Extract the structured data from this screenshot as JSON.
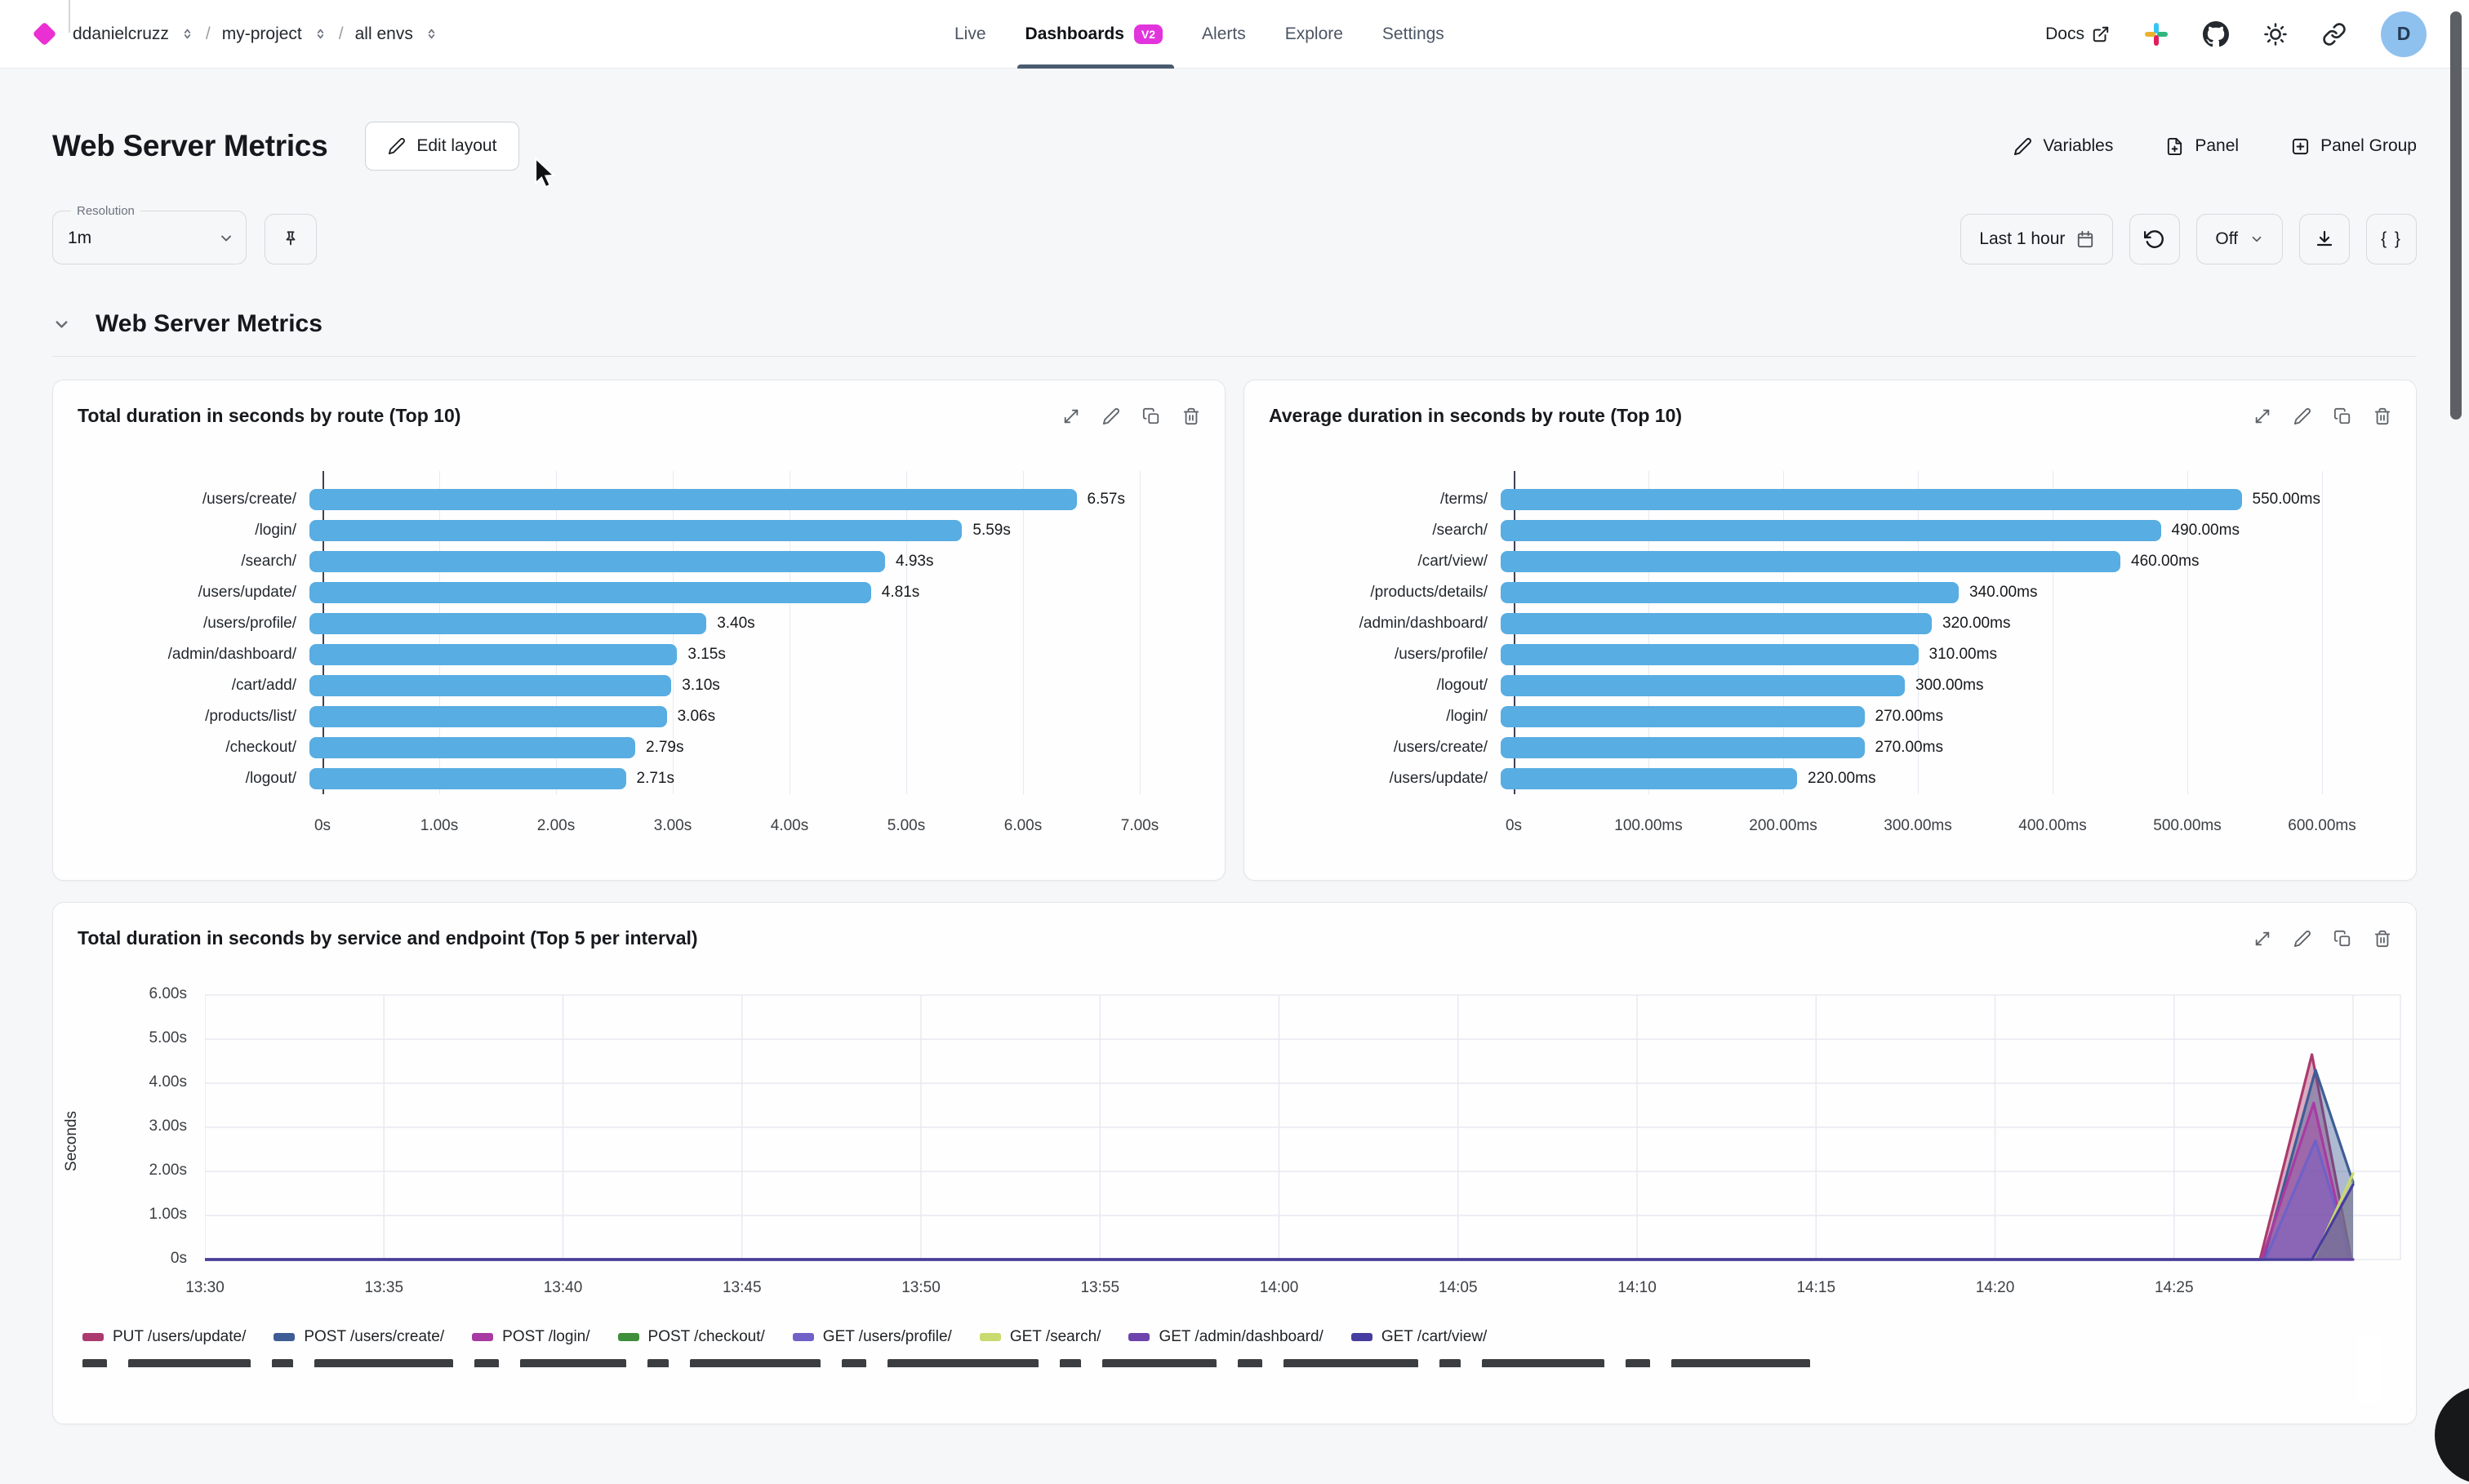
{
  "nav": {
    "breadcrumb": {
      "org": "ddanielcruzz",
      "project": "my-project",
      "env": "all envs"
    },
    "tabs": [
      {
        "label": "Live"
      },
      {
        "label": "Dashboards",
        "badge": "V2",
        "active": true
      },
      {
        "label": "Alerts"
      },
      {
        "label": "Explore"
      },
      {
        "label": "Settings"
      }
    ],
    "docs_label": "Docs",
    "avatar_initial": "D"
  },
  "header": {
    "title": "Web Server Metrics",
    "edit_layout": "Edit layout",
    "actions": [
      "Variables",
      "Panel",
      "Panel Group"
    ]
  },
  "toolbar": {
    "resolution_label": "Resolution",
    "resolution_value": "1m",
    "time_range": "Last 1 hour",
    "refresh_mode": "Off",
    "code_button": "{ }"
  },
  "section": {
    "title": "Web Server Metrics"
  },
  "chart_data": [
    {
      "type": "bar",
      "orientation": "horizontal",
      "title": "Total duration in seconds by route (Top 10)",
      "categories": [
        "/users/create/",
        "/login/",
        "/search/",
        "/users/update/",
        "/users/profile/",
        "/admin/dashboard/",
        "/cart/add/",
        "/products/list/",
        "/checkout/",
        "/logout/"
      ],
      "values": [
        6.57,
        5.59,
        4.93,
        4.81,
        3.4,
        3.15,
        3.1,
        3.06,
        2.79,
        2.71
      ],
      "value_labels": [
        "6.57s",
        "5.59s",
        "4.93s",
        "4.81s",
        "3.40s",
        "3.15s",
        "3.10s",
        "3.06s",
        "2.79s",
        "2.71s"
      ],
      "x_ticks": [
        "0s",
        "1.00s",
        "2.00s",
        "3.00s",
        "4.00s",
        "5.00s",
        "6.00s",
        "7.00s"
      ],
      "xlim": [
        0,
        7
      ],
      "bar_color": "#58ade2"
    },
    {
      "type": "bar",
      "orientation": "horizontal",
      "title": "Average duration in seconds by route (Top 10)",
      "categories": [
        "/terms/",
        "/search/",
        "/cart/view/",
        "/products/details/",
        "/admin/dashboard/",
        "/users/profile/",
        "/logout/",
        "/login/",
        "/users/create/",
        "/users/update/"
      ],
      "values": [
        550,
        490,
        460,
        340,
        320,
        310,
        300,
        270,
        270,
        220
      ],
      "value_labels": [
        "550.00ms",
        "490.00ms",
        "460.00ms",
        "340.00ms",
        "320.00ms",
        "310.00ms",
        "300.00ms",
        "270.00ms",
        "270.00ms",
        "220.00ms"
      ],
      "x_ticks": [
        "0s",
        "100.00ms",
        "200.00ms",
        "300.00ms",
        "400.00ms",
        "500.00ms",
        "600.00ms"
      ],
      "xlim": [
        0,
        600
      ],
      "bar_color": "#58ade2"
    },
    {
      "type": "area",
      "title": "Total duration in seconds by service and endpoint (Top 5 per interval)",
      "ylabel": "Seconds",
      "y_ticks": [
        "6.00s",
        "5.00s",
        "4.00s",
        "3.00s",
        "2.00s",
        "1.00s",
        "0s"
      ],
      "ylim": [
        0,
        6
      ],
      "x_ticks": [
        "13:30",
        "13:35",
        "13:40",
        "13:45",
        "13:50",
        "13:55",
        "14:00",
        "14:05",
        "14:10",
        "14:15",
        "14:20",
        "14:25"
      ],
      "grid": true,
      "legend_position": "bottom",
      "series": [
        {
          "name": "PUT /users/update/",
          "color": "#ab3a6e",
          "points": [
            [
              0,
              0
            ],
            [
              57.4,
              0
            ],
            [
              58.85,
              4.65
            ],
            [
              59.95,
              0
            ]
          ]
        },
        {
          "name": "POST /users/create/",
          "color": "#3e5d94",
          "points": [
            [
              0,
              0
            ],
            [
              57.5,
              0
            ],
            [
              58.95,
              4.3
            ],
            [
              60,
              1.75
            ]
          ]
        },
        {
          "name": "POST /login/",
          "color": "#a83aa3",
          "points": [
            [
              0,
              0
            ],
            [
              57.45,
              0
            ],
            [
              58.9,
              3.55
            ],
            [
              59.9,
              0
            ]
          ]
        },
        {
          "name": "POST /checkout/",
          "color": "#3f8e3b",
          "points": [
            [
              0,
              0
            ],
            [
              60,
              0
            ]
          ]
        },
        {
          "name": "GET /users/profile/",
          "color": "#6f61c8",
          "points": [
            [
              0,
              0
            ],
            [
              57.55,
              0
            ],
            [
              58.95,
              2.7
            ],
            [
              59.95,
              0
            ]
          ]
        },
        {
          "name": "GET /search/",
          "color": "#c9da70",
          "points": [
            [
              0,
              0
            ],
            [
              58.9,
              0
            ],
            [
              60,
              1.95
            ]
          ]
        },
        {
          "name": "GET /admin/dashboard/",
          "color": "#6d44ab",
          "points": [
            [
              0,
              0
            ],
            [
              60,
              0
            ]
          ]
        },
        {
          "name": "GET /cart/view/",
          "color": "#473ca0",
          "points": [
            [
              0,
              0
            ],
            [
              58.85,
              0
            ],
            [
              60,
              1.7
            ]
          ]
        }
      ]
    }
  ]
}
